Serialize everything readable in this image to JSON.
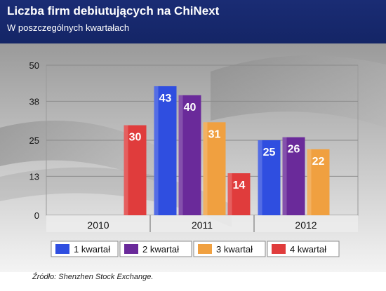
{
  "header": {
    "title": "Liczba firm debiutujących na ChiNext",
    "subtitle": "W poszczególnych kwartałach"
  },
  "source": "Źródło: Shenzhen Stock Exchange.",
  "chart_data": {
    "type": "bar",
    "title": "Liczba firm debiutujących na ChiNext",
    "subtitle": "W poszczególnych kwartałach",
    "categories": [
      "2010",
      "2011",
      "2012"
    ],
    "series": [
      {
        "name": "1 kwartał",
        "color": "#2f4ee0",
        "values": [
          null,
          43,
          25
        ]
      },
      {
        "name": "2 kwartał",
        "color": "#6a2a9a",
        "values": [
          null,
          40,
          26
        ]
      },
      {
        "name": "3 kwartał",
        "color": "#f0a040",
        "values": [
          null,
          31,
          22
        ]
      },
      {
        "name": "4 kwartał",
        "color": "#e03c3c",
        "values": [
          30,
          14,
          null
        ]
      }
    ],
    "yticks": [
      "0",
      "13",
      "25",
      "38",
      "50"
    ],
    "ylim": [
      0,
      50
    ],
    "grid": true,
    "legend": "bottom",
    "data_labels": true
  }
}
